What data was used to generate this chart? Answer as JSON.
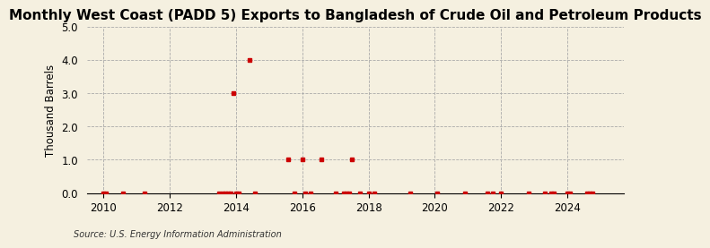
{
  "title": "Monthly West Coast (PADD 5) Exports to Bangladesh of Crude Oil and Petroleum Products",
  "ylabel": "Thousand Barrels",
  "source": "Source: U.S. Energy Information Administration",
  "ylim": [
    0.0,
    5.0
  ],
  "yticks": [
    0.0,
    1.0,
    2.0,
    3.0,
    4.0,
    5.0
  ],
  "xlim_start": 2009.5,
  "xlim_end": 2025.7,
  "xticks": [
    2010,
    2012,
    2014,
    2016,
    2018,
    2020,
    2022,
    2024
  ],
  "background_color": "#f5f0e0",
  "marker_color": "#cc0000",
  "grid_color": "#aaaaaa",
  "title_fontsize": 11,
  "vline_years": [
    2010,
    2012,
    2014,
    2016,
    2018,
    2020,
    2022,
    2024
  ],
  "data_x": [
    2010.0,
    2010.083,
    2010.583,
    2011.25,
    2013.5,
    2013.583,
    2013.667,
    2013.75,
    2013.833,
    2013.917,
    2014.0,
    2014.083,
    2014.417,
    2014.583,
    2015.583,
    2015.75,
    2016.0,
    2016.083,
    2016.25,
    2016.583,
    2017.0,
    2017.25,
    2017.333,
    2017.417,
    2017.5,
    2017.75,
    2018.0,
    2018.167,
    2019.25,
    2020.083,
    2020.917,
    2021.583,
    2021.75,
    2022.0,
    2022.833,
    2023.333,
    2023.5,
    2023.583,
    2024.0,
    2024.083,
    2024.583,
    2024.667,
    2024.75
  ],
  "data_y": [
    0.0,
    0.0,
    0.0,
    0.0,
    0.0,
    0.0,
    0.0,
    0.0,
    0.0,
    3.0,
    0.0,
    0.0,
    4.0,
    0.0,
    1.0,
    0.0,
    1.0,
    0.0,
    0.0,
    1.0,
    0.0,
    0.0,
    0.0,
    0.0,
    1.0,
    0.0,
    0.0,
    0.0,
    0.0,
    0.0,
    0.0,
    0.0,
    0.0,
    0.0,
    0.0,
    0.0,
    0.0,
    0.0,
    0.0,
    0.0,
    0.0,
    0.0,
    0.0
  ]
}
